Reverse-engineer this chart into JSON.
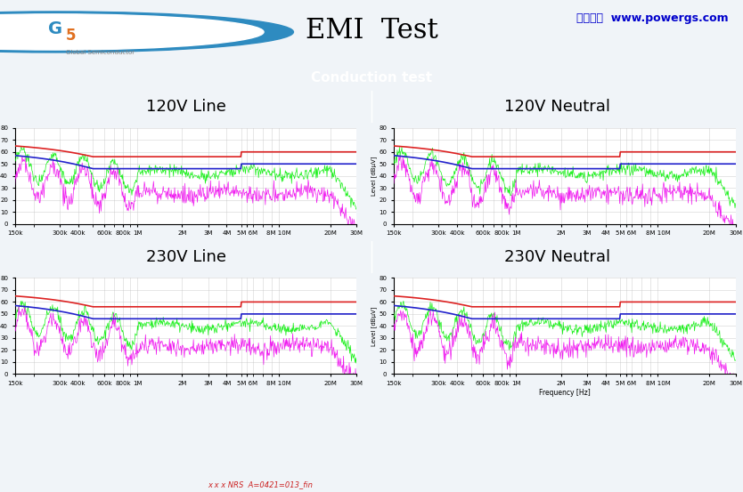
{
  "title": "EMI  Test",
  "subtitle_chinese": "港晶电子  www.powergs.com",
  "conduction_label": "Conduction test",
  "panel_titles": [
    [
      "120V Line",
      "120V Neutral"
    ],
    [
      "230V Line",
      "230V Neutral"
    ]
  ],
  "ylabel": "Level [dBµV]",
  "xlabel": "Frequency [Hz]",
  "xtick_labels": [
    "150k",
    "300k",
    "400k",
    "600k",
    "800k",
    "1M",
    "2M",
    "3M",
    "4M",
    "5M 6M",
    "8M 10M",
    "20M",
    "30M"
  ],
  "ytick_vals": [
    0,
    10,
    20,
    30,
    40,
    50,
    60,
    70,
    80
  ],
  "header_bg": "#2e8bc0",
  "subheader_bg": "#c5cfe8",
  "page_bg": "#f0f0f0",
  "plot_bg": "#ffffff",
  "red_line_color": "#dd2222",
  "blue_line_color": "#2222cc",
  "green_line_color": "#00ee00",
  "magenta_line_color": "#ee00ee",
  "footer_text": "x x x NRS  A=0421=013_fin"
}
